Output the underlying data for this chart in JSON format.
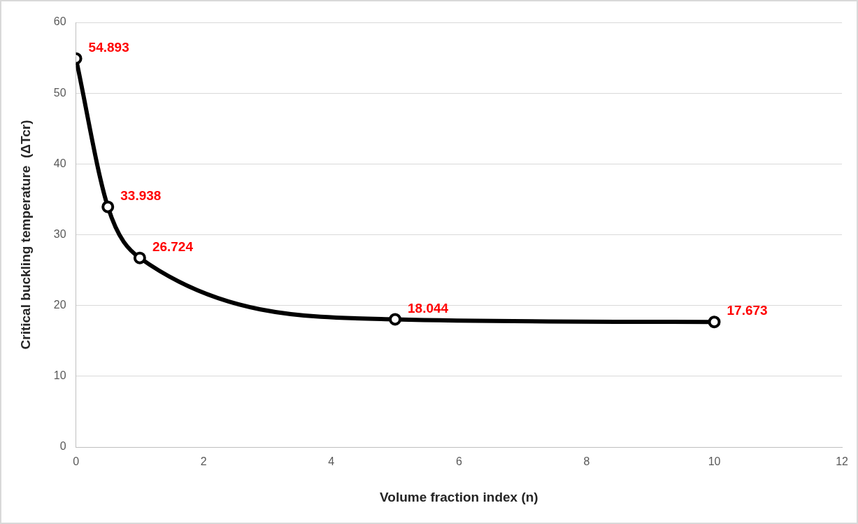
{
  "chart_data": {
    "type": "line",
    "xlabel": "Volume fraction index (n)",
    "ylabel": "Critical buckling temperature  (ΔTcr)",
    "x": [
      0,
      0.5,
      1,
      5,
      10
    ],
    "series": [
      {
        "color": "#000000",
        "values": [
          54.893,
          33.938,
          26.724,
          18.044,
          17.673
        ]
      }
    ],
    "xlim": [
      0,
      12
    ],
    "xticks": [
      0,
      2,
      4,
      6,
      8,
      10,
      12
    ],
    "ylim": [
      0,
      60
    ],
    "yticks": [
      0,
      10,
      20,
      30,
      40,
      50,
      60
    ],
    "grid": "y",
    "legend": false,
    "marker": "circle",
    "line_style": "solid",
    "data_labels": true
  }
}
